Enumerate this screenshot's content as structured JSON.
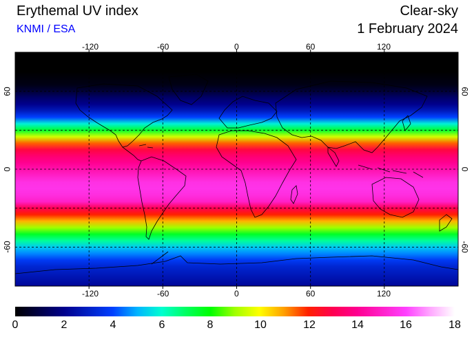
{
  "header": {
    "title": "Erythemal UV index",
    "attribution": "KNMI / ESA",
    "sky_condition": "Clear-sky",
    "date": "1 February 2024"
  },
  "map": {
    "projection": "equirectangular",
    "lon_range": [
      -180,
      180
    ],
    "lat_range": [
      -90,
      90
    ],
    "grid": true,
    "lon_ticks": [
      "-120",
      "-60",
      "0",
      "60",
      "120"
    ],
    "lat_ticks_left": [
      "60",
      "0",
      "-60"
    ],
    "lat_ticks_right": [
      "60",
      "0",
      "-60"
    ]
  },
  "colorbar": {
    "min": 0,
    "max": 18,
    "labels": [
      "0",
      "2",
      "4",
      "6",
      "8",
      "10",
      "12",
      "14",
      "16",
      "18"
    ],
    "stops": [
      {
        "value": 0,
        "color": "#000000"
      },
      {
        "value": 2,
        "color": "#00008c"
      },
      {
        "value": 4,
        "color": "#0040ff"
      },
      {
        "value": 5,
        "color": "#00b4ff"
      },
      {
        "value": 6,
        "color": "#00ffd0"
      },
      {
        "value": 7,
        "color": "#00ff60"
      },
      {
        "value": 8,
        "color": "#00ff00"
      },
      {
        "value": 9,
        "color": "#a0ff00"
      },
      {
        "value": 10,
        "color": "#ffff00"
      },
      {
        "value": 11,
        "color": "#ffa000"
      },
      {
        "value": 12,
        "color": "#ff2000"
      },
      {
        "value": 13,
        "color": "#ff0050"
      },
      {
        "value": 14,
        "color": "#ff0090"
      },
      {
        "value": 16,
        "color": "#ff40ff"
      },
      {
        "value": 17,
        "color": "#ffa8ff"
      },
      {
        "value": 18,
        "color": "#ffffff"
      }
    ]
  },
  "uv_by_latitude": {
    "latitudes": [
      90,
      75,
      65,
      60,
      55,
      50,
      45,
      40,
      35,
      30,
      25,
      20,
      15,
      10,
      5,
      0,
      -5,
      -10,
      -15,
      -20,
      -25,
      -30,
      -35,
      -40,
      -45,
      -50,
      -55,
      -60,
      -65,
      -70,
      -75,
      -90
    ],
    "uv_index": [
      0,
      0,
      0.3,
      0.8,
      1.5,
      2,
      2.8,
      4,
      5.8,
      7.5,
      9.5,
      11.5,
      12.8,
      13.5,
      14,
      14.5,
      15,
      15.5,
      15.6,
      15.4,
      15,
      13,
      12,
      10.8,
      9,
      7.6,
      6.5,
      5.3,
      4.6,
      3.8,
      3.2,
      2.2
    ]
  }
}
